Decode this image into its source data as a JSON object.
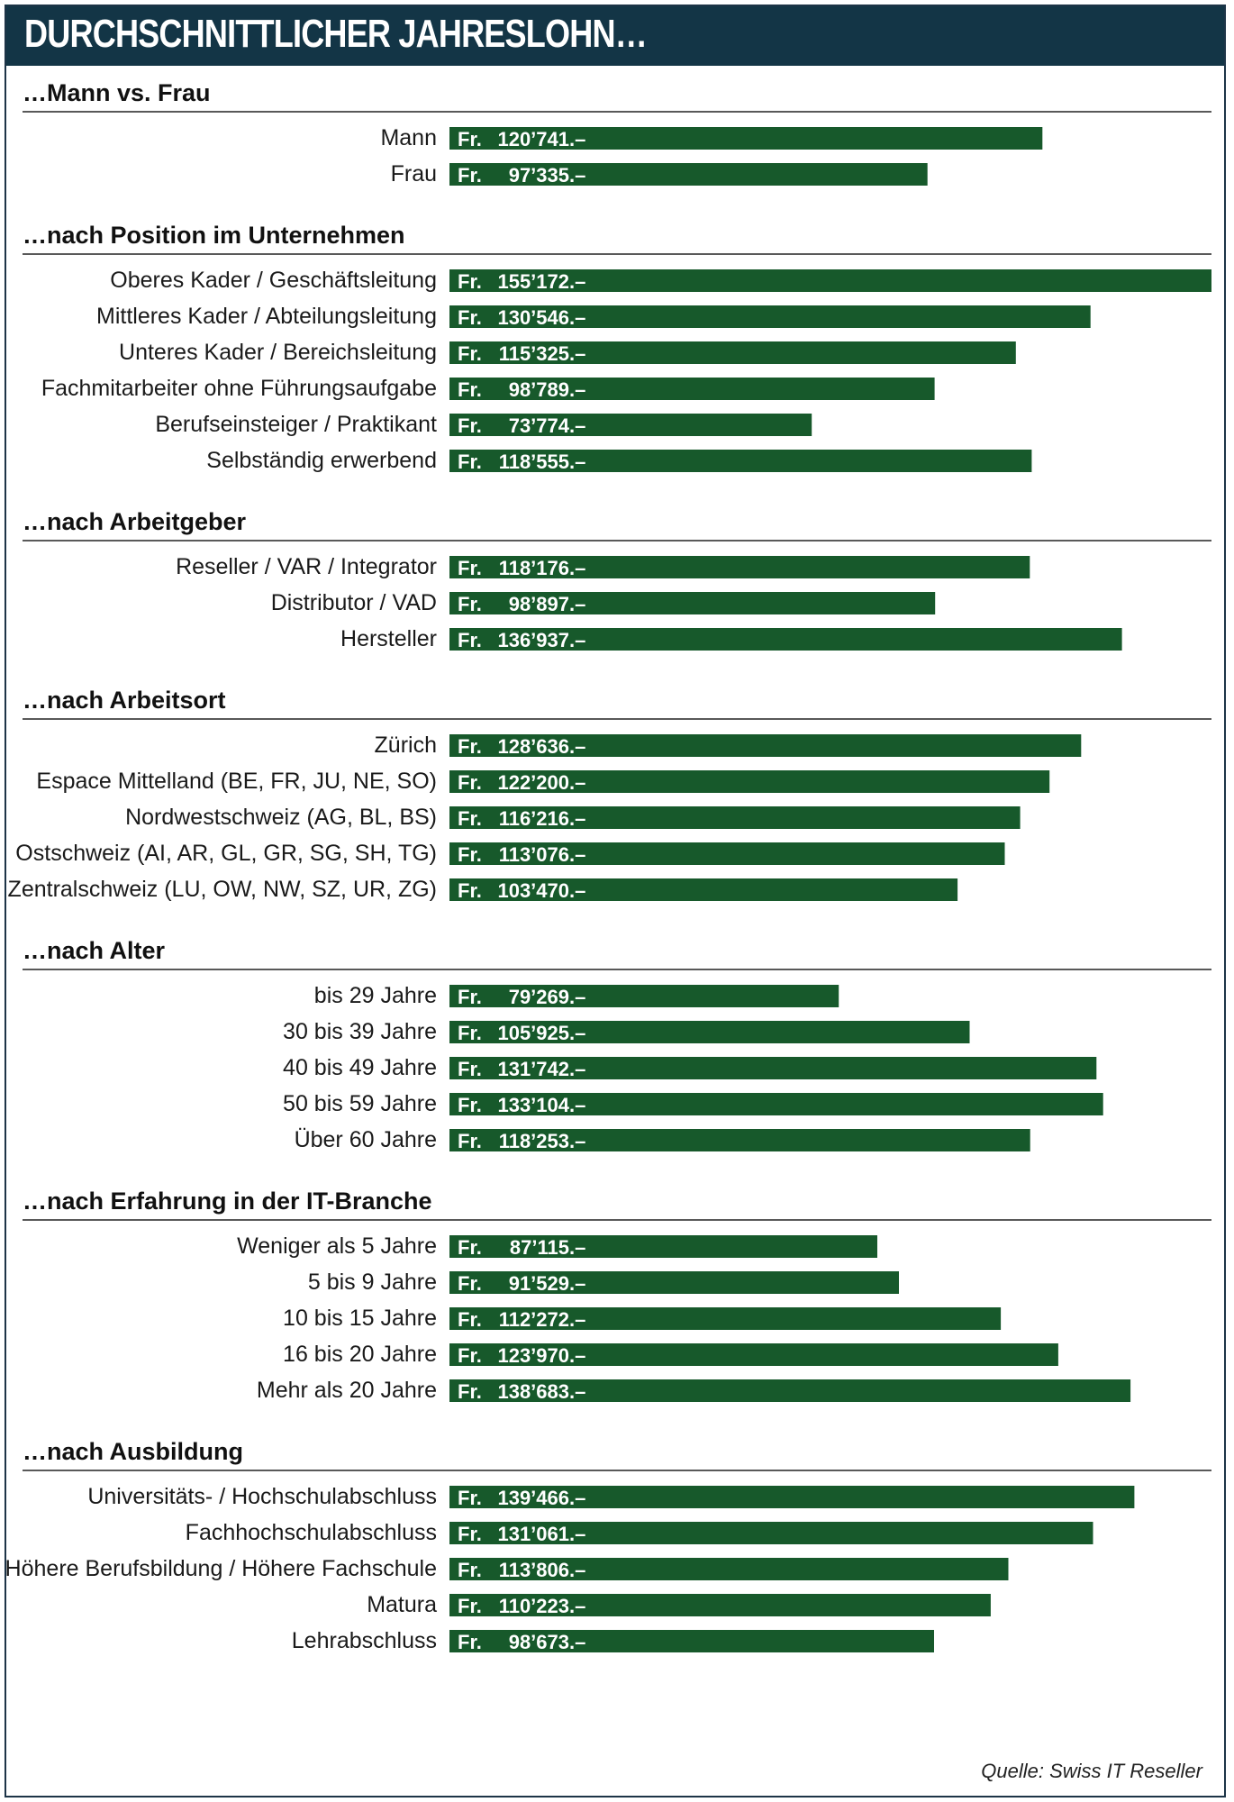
{
  "title": "DURCHSCHNITTLICHER JAHRESLOHN…",
  "source": "Quelle: Swiss IT Reseller",
  "colors": {
    "header": "#133546",
    "bar": "#17592b",
    "bar_text": "#ffffff"
  },
  "chart_data": {
    "type": "bar",
    "orientation": "horizontal",
    "value_prefix": "Fr.",
    "value_suffix": ".–",
    "xlim": [
      0,
      155172
    ],
    "groups": [
      {
        "title": "…Mann vs. Frau",
        "categories": [
          "Mann",
          "Frau"
        ],
        "values": [
          120741,
          97335
        ],
        "value_labels": [
          "120’741",
          "97’335"
        ]
      },
      {
        "title": "…nach Position im Unternehmen",
        "categories": [
          "Oberes Kader / Geschäftsleitung",
          "Mittleres Kader / Abteilungsleitung",
          "Unteres Kader / Bereichsleitung",
          "Fachmitarbeiter ohne Führungsaufgabe",
          "Berufseinsteiger / Praktikant",
          "Selbständig erwerbend"
        ],
        "values": [
          155172,
          130546,
          115325,
          98789,
          73774,
          118555
        ],
        "value_labels": [
          "155’172",
          "130’546",
          "115’325",
          "98’789",
          "73’774",
          "118’555"
        ]
      },
      {
        "title": "…nach Arbeitgeber",
        "categories": [
          "Reseller / VAR / Integrator",
          "Distributor / VAD",
          "Hersteller"
        ],
        "values": [
          118176,
          98897,
          136937
        ],
        "value_labels": [
          "118’176",
          "98’897",
          "136’937"
        ]
      },
      {
        "title": "…nach Arbeitsort",
        "categories": [
          "Zürich",
          "Espace Mittelland (BE, FR, JU, NE, SO)",
          "Nordwestschweiz (AG, BL, BS)",
          "Ostschweiz (AI, AR, GL, GR, SG, SH, TG)",
          "Zentralschweiz (LU, OW, NW, SZ, UR, ZG)"
        ],
        "values": [
          128636,
          122200,
          116216,
          113076,
          103470
        ],
        "value_labels": [
          "128’636",
          "122’200",
          "116’216",
          "113’076",
          "103’470"
        ]
      },
      {
        "title": "…nach Alter",
        "categories": [
          "bis 29 Jahre",
          "30 bis 39 Jahre",
          "40 bis 49 Jahre",
          "50 bis 59 Jahre",
          "Über 60 Jahre"
        ],
        "values": [
          79269,
          105925,
          131742,
          133104,
          118253
        ],
        "value_labels": [
          "79’269",
          "105’925",
          "131’742",
          "133’104",
          "118’253"
        ]
      },
      {
        "title": "…nach Erfahrung in der IT-Branche",
        "categories": [
          "Weniger als 5 Jahre",
          "5 bis 9 Jahre",
          "10 bis 15 Jahre",
          "16 bis 20 Jahre",
          "Mehr als 20 Jahre"
        ],
        "values": [
          87115,
          91529,
          112272,
          123970,
          138683
        ],
        "value_labels": [
          "87’115",
          "91’529",
          "112’272",
          "123’970",
          "138’683"
        ]
      },
      {
        "title": "…nach Ausbildung",
        "categories": [
          "Universitäts- / Hochschulabschluss",
          "Fachhochschulabschluss",
          "Höhere Berufsbildung / Höhere Fachschule",
          "Matura",
          "Lehrabschluss"
        ],
        "values": [
          139466,
          131061,
          113806,
          110223,
          98673
        ],
        "value_labels": [
          "139’466",
          "131’061",
          "113’806",
          "110’223",
          "98’673"
        ]
      }
    ]
  }
}
